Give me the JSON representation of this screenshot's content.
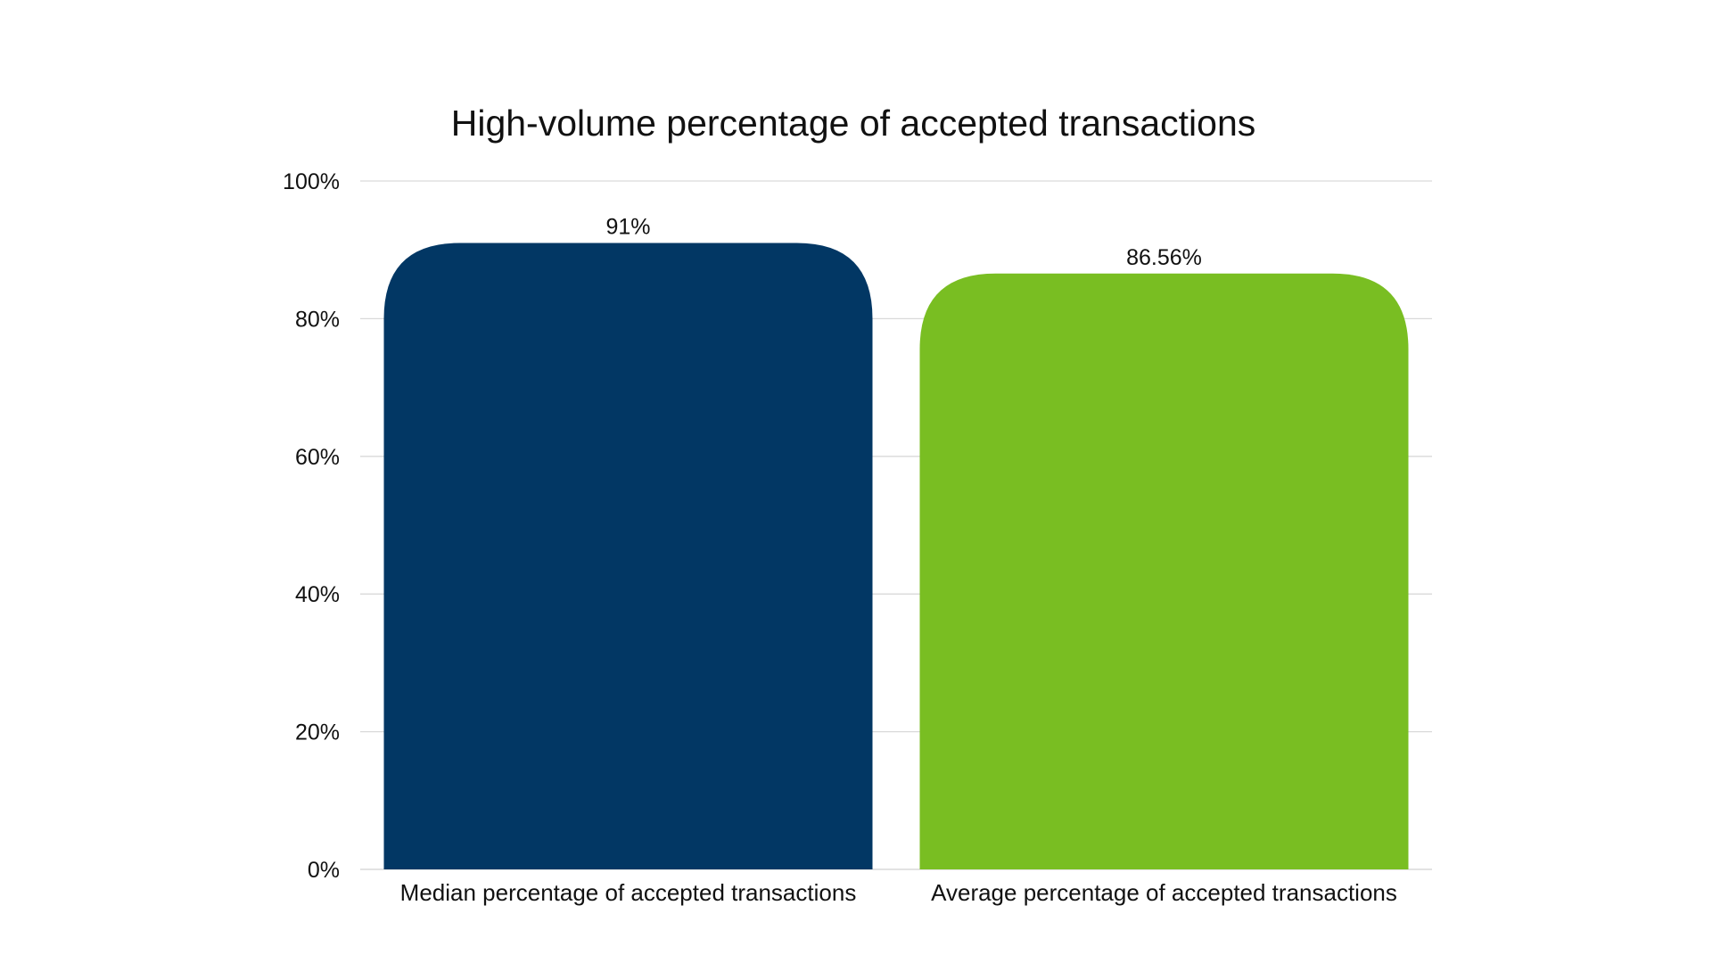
{
  "chart_data": {
    "type": "bar",
    "title": "High-volume percentage of accepted transactions",
    "categories": [
      "Median percentage of accepted transactions",
      "Average percentage of accepted transactions"
    ],
    "values": [
      91,
      86.56
    ],
    "data_labels": [
      "91%",
      "86.56%"
    ],
    "bar_colors": [
      "#023764",
      "#79BE22"
    ],
    "xlabel": "",
    "ylabel": "",
    "ylim": [
      0,
      100
    ],
    "y_ticks": [
      0,
      20,
      40,
      60,
      80,
      100
    ],
    "y_tick_labels": [
      "0%",
      "20%",
      "40%",
      "60%",
      "80%",
      "100%"
    ],
    "grid": true,
    "legend": "none"
  }
}
